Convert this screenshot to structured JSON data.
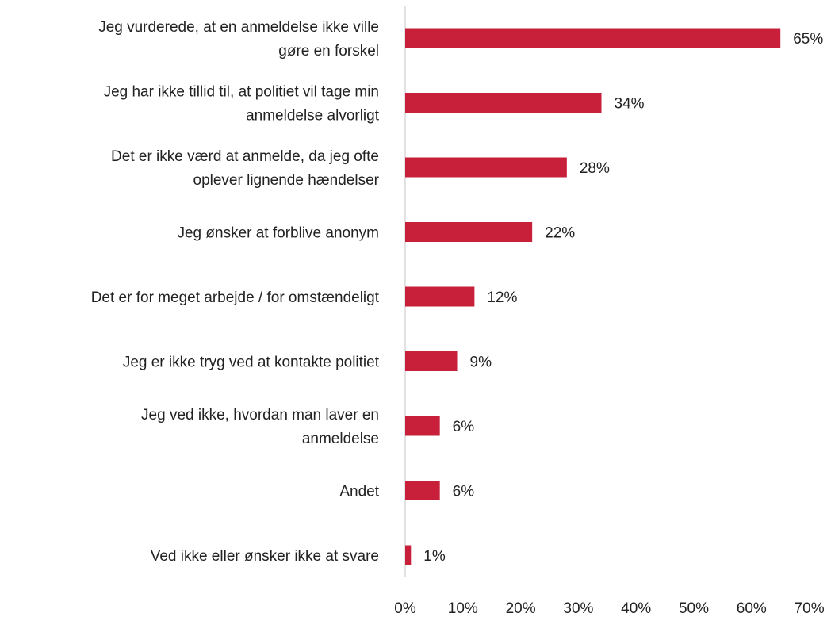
{
  "chart_data": {
    "type": "bar",
    "orientation": "horizontal",
    "title": "",
    "xlabel": "",
    "ylabel": "",
    "categories": [
      [
        "Jeg vurderede, at en anmeldelse ikke ville",
        "gøre en forskel"
      ],
      [
        "Jeg har ikke tillid til, at politiet vil tage min",
        "anmeldelse alvorligt"
      ],
      [
        "Det er ikke værd at anmelde, da jeg ofte",
        "oplever lignende hændelser"
      ],
      [
        "Jeg ønsker at forblive anonym"
      ],
      [
        "Det er for meget arbejde / for omstændeligt"
      ],
      [
        "Jeg er ikke tryg ved at kontakte politiet"
      ],
      [
        "Jeg ved ikke, hvordan man laver en",
        "anmeldelse"
      ],
      [
        "Andet"
      ],
      [
        "Ved ikke eller ønsker ikke at svare"
      ]
    ],
    "values": [
      65,
      34,
      28,
      22,
      12,
      9,
      6,
      6,
      1
    ],
    "value_labels": [
      "65%",
      "34%",
      "28%",
      "22%",
      "12%",
      "9%",
      "6%",
      "6%",
      "1%"
    ],
    "xlim": [
      0,
      70
    ],
    "x_ticks": [
      "0%",
      "10%",
      "20%",
      "30%",
      "40%",
      "50%",
      "60%",
      "70%"
    ],
    "grid": false,
    "legend": "none",
    "bar_color": "#c8203a",
    "axis_color": "#d9d9d9"
  }
}
